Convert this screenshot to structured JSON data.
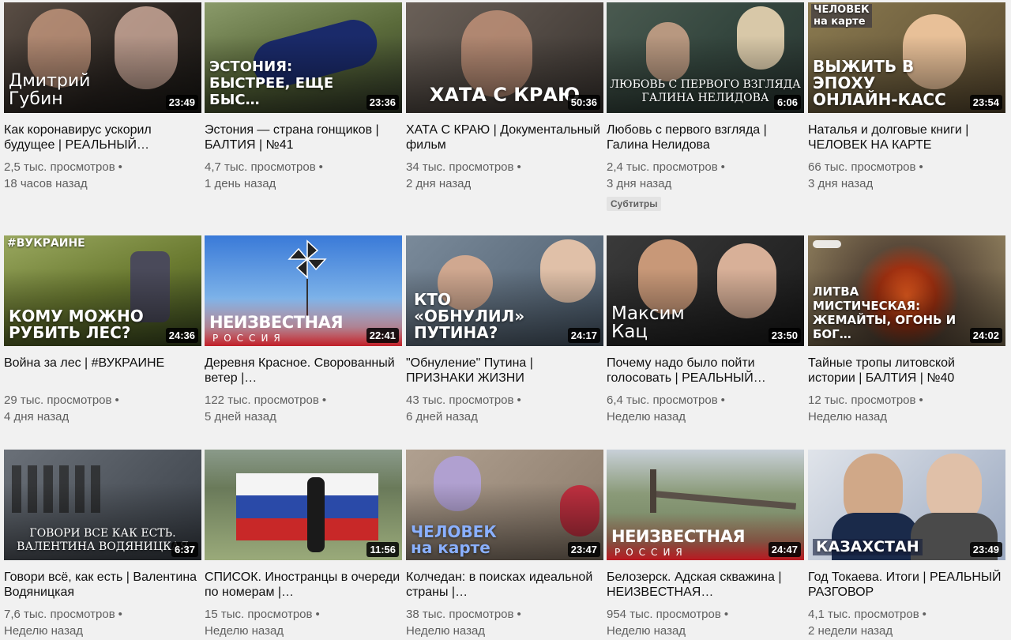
{
  "videos": [
    {
      "title": "Как коронавирус ускорил будущее | РЕАЛЬНЫЙ…",
      "views": "2,5 тыс. просмотров",
      "age": "18 часов назад",
      "duration": "23:49",
      "thumb_text": "Дмитрий\nГубин",
      "bg": "#3a3530"
    },
    {
      "title": "Эстония — страна гонщиков | БАЛТИЯ | №41",
      "views": "4,7 тыс. просмотров",
      "age": "1 день назад",
      "duration": "23:36",
      "thumb_text": "ЭСТОНИЯ:\nБЫСТРЕЕ, ЕЩЕ БЫС…",
      "bg": "#6b7d4a"
    },
    {
      "title": "ХАТА С КРАЮ | Документальный фильм",
      "views": "34 тыс. просмотров",
      "age": "2 дня назад",
      "duration": "50:36",
      "thumb_text": "ХАТА С КРАЮ",
      "bg": "#4a4540"
    },
    {
      "title": "Любовь с первого взгляда | Галина Нелидова",
      "views": "2,4 тыс. просмотров",
      "age": "3 дня назад",
      "badge": "Субтитры",
      "duration": "6:06",
      "thumb_text": "ЛЮБОВЬ С ПЕРВОГО ВЗГЛЯДА\nГАЛИНА НЕЛИДОВА",
      "bg": "#3e5048"
    },
    {
      "title": "Наталья и долговые книги | ЧЕЛОВЕК НА КАРТЕ",
      "views": "66 тыс. просмотров",
      "age": "3 дня назад",
      "duration": "23:54",
      "thumb_text": "ВЫЖИТЬ В ЭПОХУ\nОНЛАЙН-КАСС",
      "tag": "ЧЕЛОВЕК\nна карте",
      "bg": "#6a5a3a"
    },
    {
      "title": "Война за лес | #ВУКРАИНЕ",
      "views": "29 тыс. просмотров",
      "age": "4 дня назад",
      "duration": "24:36",
      "thumb_text": "КОМУ МОЖНО\nРУБИТЬ ЛЕС?",
      "tag": "#ВУКРАИНЕ",
      "bg": "#5a6a2a"
    },
    {
      "title": "Деревня Красное. Своровaнный ветер |…",
      "views": "122 тыс. просмотров",
      "age": "5 дней назад",
      "duration": "22:41",
      "nr_title": "НЕИЗВЕСТНАЯ",
      "nr_sub": "РОССИЯ",
      "bg": "#4a8ad0"
    },
    {
      "title": "\"Обнуление\" Путина | ПРИЗНАКИ ЖИЗНИ",
      "views": "43 тыс. просмотров",
      "age": "6 дней назад",
      "duration": "24:17",
      "thumb_text": "КТО «ОБНУЛИЛ»\nПУТИНА?",
      "bg": "#5a6a7a"
    },
    {
      "title": "Почему надо было пойти голосовать | РЕАЛЬНЫЙ…",
      "views": "6,4 тыс. просмотров",
      "age": "Неделю назад",
      "duration": "23:50",
      "thumb_text": "Максим\nКац",
      "bg": "#2a2a2a"
    },
    {
      "title": "Тайные тропы литовской истории | БАЛТИЯ | №40",
      "views": "12 тыс. просмотров",
      "age": "Неделю назад",
      "duration": "24:02",
      "thumb_text": "ЛИТВА МИСТИЧЕСКАЯ:\nЖЕМАЙТЫ, ОГОНЬ И БОГ…",
      "bg": "#6a4a30"
    },
    {
      "title": "Говори всё, как есть | Валентина Водяницкая",
      "views": "7,6 тыс. просмотров",
      "age": "Неделю назад",
      "duration": "6:37",
      "thumb_text": "ГОВОРИ ВСЕ КАК ЕСТЬ.\nВАЛЕНТИНА ВОДЯНИЦКАЯ",
      "bg": "#4a5058"
    },
    {
      "title": "СПИСОК. Иностранцы в очереди по номерам |…",
      "views": "15 тыс. просмотров",
      "age": "Неделю назад",
      "duration": "11:56",
      "bg": "#6a7a6a"
    },
    {
      "title": "Колчедан: в поисках идеальной страны |…",
      "views": "38 тыс. просмотров",
      "age": "Неделю назад",
      "duration": "23:47",
      "thumb_text": "ЧЕЛОВЕК\nна карте",
      "bg": "#7a6a5a"
    },
    {
      "title": "Белозерск. Адская скважина | НЕИЗВЕСТНАЯ…",
      "views": "954 тыс. просмотров",
      "age": "Неделю назад",
      "duration": "24:47",
      "nr_title": "НЕИЗВЕСТНАЯ",
      "nr_sub": "РОССИЯ",
      "bg": "#6a7a5a"
    },
    {
      "title": "Год Токаева. Итоги | РЕАЛЬНЫЙ РАЗГОВОР",
      "views": "4,1 тыс. просмотров",
      "age": "2 недели назад",
      "duration": "23:49",
      "thumb_text": "КАЗАХСТАН",
      "bg": "#3a4a6a"
    }
  ],
  "dot": "•"
}
